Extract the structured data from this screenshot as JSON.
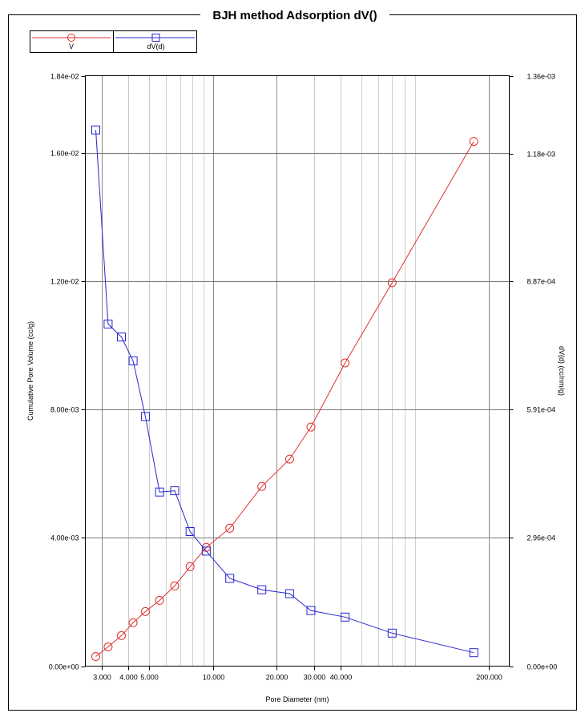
{
  "chart_data": {
    "type": "line",
    "title": "BJH method Adsorption  dV()",
    "xlabel": "Pore Diameter (nm)",
    "ylabel_left": "Cumulative Pore Volume (cc/g)",
    "ylabel_right": "dV(d) (cc/nm/g)",
    "x_scale": "log",
    "xlim": [
      2.5,
      250
    ],
    "ylim_left": [
      0,
      0.0184
    ],
    "ylim_right": [
      0,
      0.00136
    ],
    "grid": true,
    "legend_position": "top-left",
    "x_ticks": [
      {
        "value": 3,
        "label": "3.000"
      },
      {
        "value": 4,
        "label": "4.000"
      },
      {
        "value": 5,
        "label": "5.000"
      },
      {
        "value": 10,
        "label": "10.000"
      },
      {
        "value": 20,
        "label": "20.000"
      },
      {
        "value": 30,
        "label": "30.000"
      },
      {
        "value": 40,
        "label": "40.000"
      },
      {
        "value": 200,
        "label": "200.000"
      }
    ],
    "x_minor_grid": [
      6,
      7,
      8,
      9,
      50,
      60,
      70,
      80,
      90
    ],
    "y_ticks_left": [
      {
        "value": 0,
        "label": "0.00e+00"
      },
      {
        "value": 0.004,
        "label": "4.00e-03"
      },
      {
        "value": 0.008,
        "label": "8.00e-03"
      },
      {
        "value": 0.012,
        "label": "1.20e-02"
      },
      {
        "value": 0.016,
        "label": "1.60e-02"
      },
      {
        "value": 0.0184,
        "label": "1.84e-02"
      }
    ],
    "y_ticks_right": [
      {
        "value": 0,
        "label": "0.00e+00"
      },
      {
        "value": 0.000296,
        "label": "2.96e-04"
      },
      {
        "value": 0.000591,
        "label": "5.91e-04"
      },
      {
        "value": 0.000887,
        "label": "8.87e-04"
      },
      {
        "value": 0.00118,
        "label": "1.18e-03"
      },
      {
        "value": 0.00136,
        "label": "1.36e-03"
      }
    ],
    "series": [
      {
        "name": "V",
        "axis": "left",
        "color": "#e03030",
        "marker": "circle",
        "x": [
          2.8,
          3.2,
          3.7,
          4.2,
          4.8,
          5.6,
          6.6,
          7.8,
          9.3,
          12.0,
          17.0,
          23.0,
          29.0,
          42.0,
          70.0,
          170.0
        ],
        "y": [
          0.0003,
          0.0006,
          0.00095,
          0.00135,
          0.0017,
          0.00205,
          0.0025,
          0.0031,
          0.0037,
          0.0043,
          0.0056,
          0.00645,
          0.00745,
          0.00945,
          0.01195,
          0.01635
        ]
      },
      {
        "name": "dV(d)",
        "axis": "right",
        "color": "#2828d0",
        "marker": "square",
        "x": [
          2.8,
          3.2,
          3.7,
          4.2,
          4.8,
          5.6,
          6.6,
          7.8,
          9.3,
          12.0,
          17.0,
          23.0,
          29.0,
          42.0,
          70.0,
          170.0
        ],
        "y": [
          0.001235,
          0.000788,
          0.000758,
          0.000703,
          0.000575,
          0.000401,
          0.000404,
          0.00031,
          0.000265,
          0.000202,
          0.000176,
          0.000167,
          0.000128,
          0.000113,
          7.6e-05,
          3.1e-05
        ]
      }
    ]
  }
}
